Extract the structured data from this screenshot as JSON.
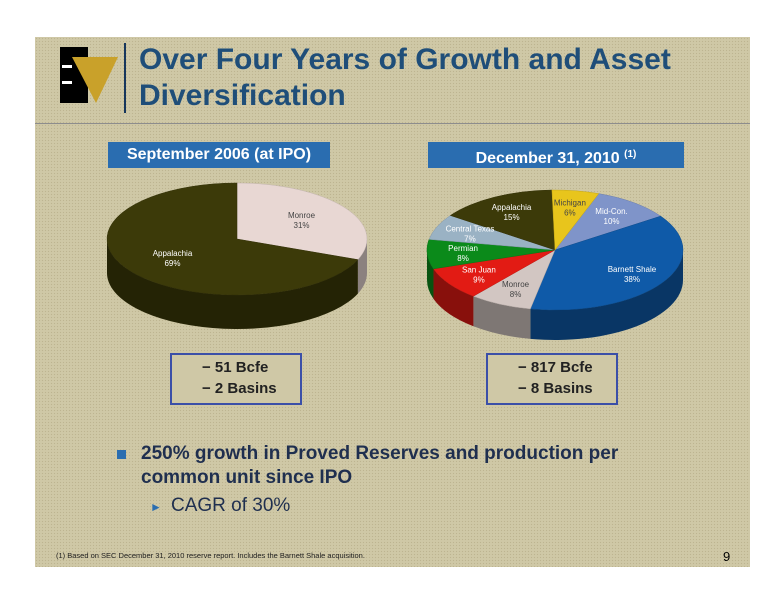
{
  "title": "Over Four Years of Growth and Asset Diversification",
  "chart_data": [
    {
      "type": "pie",
      "title": "September 2006 (at IPO)",
      "slices": [
        {
          "label": "Monroe",
          "value": 31,
          "pct_label": "31%",
          "color": "#e8d7d3"
        },
        {
          "label": "Appalachia",
          "value": 69,
          "pct_label": "69%",
          "color": "#3c3a09"
        }
      ]
    },
    {
      "type": "pie",
      "title": "December 31, 2010",
      "title_note": "(1)",
      "slices": [
        {
          "label": "Mid-Con.",
          "value": 10,
          "pct_label": "10%",
          "color": "#7f94c9"
        },
        {
          "label": "Barnett Shale",
          "value": 38,
          "pct_label": "38%",
          "color": "#0f5aa8"
        },
        {
          "label": "Monroe",
          "value": 8,
          "pct_label": "8%",
          "color": "#d2c6c2"
        },
        {
          "label": "San Juan",
          "value": 9,
          "pct_label": "9%",
          "color": "#e21b14"
        },
        {
          "label": "Permian",
          "value": 8,
          "pct_label": "8%",
          "color": "#0b8a1a"
        },
        {
          "label": "Central Texas",
          "value": 7,
          "pct_label": "7%",
          "color": "#9ab2c4"
        },
        {
          "label": "Appalachia",
          "value": 15,
          "pct_label": "15%",
          "color": "#3c3a09"
        },
        {
          "label": "Michigan",
          "value": 6,
          "pct_label": "6%",
          "color": "#e8c51c"
        }
      ]
    }
  ],
  "left_box": {
    "line1": "− 51 Bcfe",
    "line2": "− 2 Basins"
  },
  "right_box": {
    "line1": "− 817 Bcfe",
    "line2": "− 8 Basins"
  },
  "bullet": "250% growth in Proved Reserves and production per common unit since IPO",
  "sub_bullet": "CAGR of 30%",
  "footnote": "(1)  Based on SEC December 31, 2010 reserve report. Includes the Barnett Shale acquisition.",
  "page_number": "9"
}
